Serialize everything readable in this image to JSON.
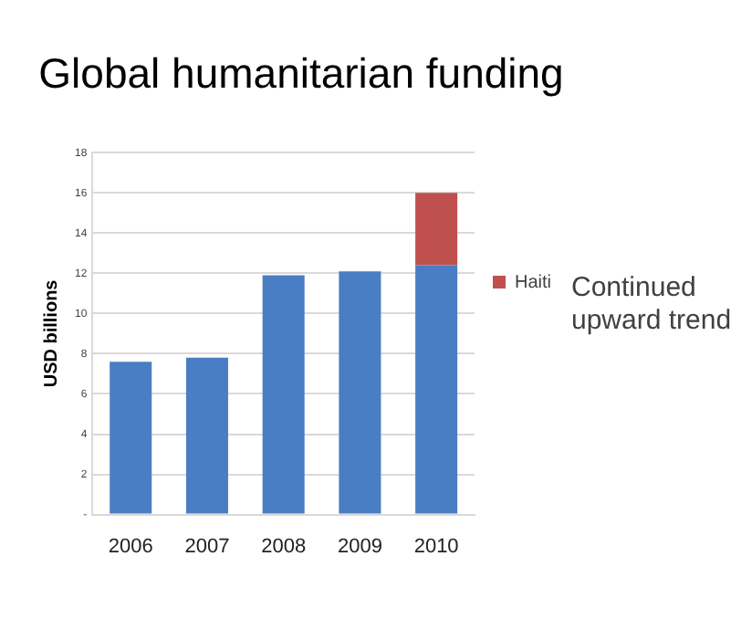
{
  "chart_data": {
    "type": "bar",
    "title": "Global humanitarian funding",
    "ylabel": "USD billions",
    "categories": [
      "2006",
      "2007",
      "2008",
      "2009",
      "2010"
    ],
    "stacked": true,
    "series": [
      {
        "color": "#4a7ec4",
        "values": [
          7.6,
          7.8,
          11.9,
          12.1,
          12.4
        ]
      },
      {
        "name": "Haiti",
        "color": "#c0504d",
        "values": [
          null,
          null,
          null,
          null,
          3.6
        ]
      }
    ],
    "ylim": [
      0,
      18
    ],
    "yticks": [
      {
        "value": 0,
        "label": "-"
      },
      2,
      4,
      6,
      8,
      10,
      12,
      14,
      16,
      18
    ],
    "grid": "y",
    "legend": "right",
    "annotations": [
      "Continued upward trend"
    ]
  }
}
